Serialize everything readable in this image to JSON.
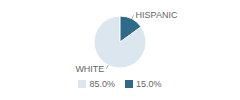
{
  "chart_data": {
    "type": "pie",
    "categories": [
      "WHITE",
      "HISPANIC"
    ],
    "values": [
      85.0,
      15.0
    ],
    "value_labels": [
      "85.0%",
      "15.0%"
    ],
    "colors": [
      "#dce6ef",
      "#2e6b8a"
    ],
    "legend": "bottom"
  }
}
